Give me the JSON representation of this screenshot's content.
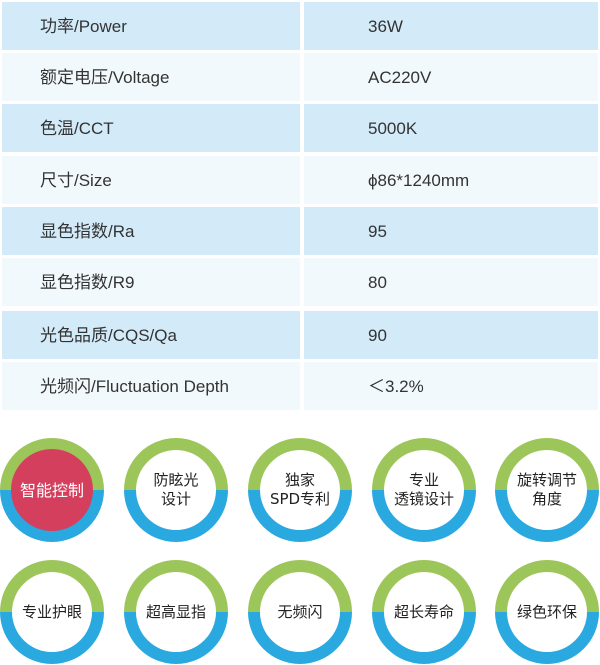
{
  "specs": [
    {
      "label": "功率/Power",
      "value": "36W"
    },
    {
      "label": "额定电压/Voltage",
      "value": "AC220V"
    },
    {
      "label": "色温/CCT",
      "value": "5000K"
    },
    {
      "label": "尺寸/Size",
      "value": "ϕ86*1240mm"
    },
    {
      "label": "显色指数/Ra",
      "value": "95"
    },
    {
      "label": "显色指数/R9",
      "value": "80"
    },
    {
      "label": "光色品质/CQS/Qa",
      "value": "90"
    },
    {
      "label": "光频闪/Fluctuation Depth",
      "value": "＜3.2%"
    }
  ],
  "features": [
    {
      "label": "智能控制",
      "active": true
    },
    {
      "label": "防眩光\n设计"
    },
    {
      "label": "独家\nSPD专利"
    },
    {
      "label": "专业\n透镜设计"
    },
    {
      "label": "旋转调节\n角度"
    },
    {
      "label": "专业护眼"
    },
    {
      "label": "超高显指"
    },
    {
      "label": "无频闪"
    },
    {
      "label": "超长寿命"
    },
    {
      "label": "绿色环保"
    }
  ],
  "colors": {
    "ring_top": "#9cc55a",
    "ring_bottom": "#2aa8e0",
    "active": "#d43f5e",
    "row_dark": "#d3ebf9",
    "row_light": "#f2f9fd"
  }
}
